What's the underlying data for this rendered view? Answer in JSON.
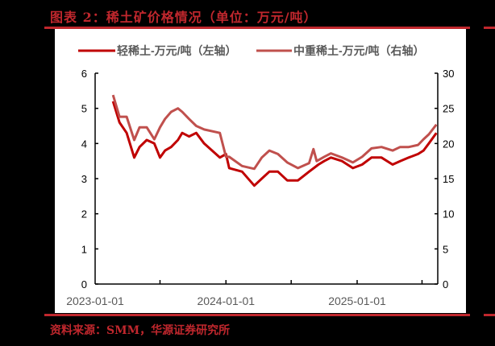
{
  "title": "图表 2：稀土矿价格情况（单位：万元/吨）",
  "source": "资料来源：SMM，华源证券研究所",
  "colors": {
    "light": "#c00000",
    "heavy": "#c0504d",
    "accent": "#c0272d",
    "axis": "#000000",
    "text": "#595959"
  },
  "chart_data": {
    "type": "line",
    "title": "稀土矿价格情况（单位：万元/吨）",
    "xlabel": "",
    "ylabel_left": "轻稀土 (万元/吨)",
    "ylabel_right": "中重稀土 (万元/吨)",
    "xlim": [
      "2023-01-01",
      "2025-10-01"
    ],
    "ylim_left": [
      0,
      6
    ],
    "ylim_right": [
      0,
      30
    ],
    "yticks_left": [
      0,
      1,
      2,
      3,
      4,
      5,
      6
    ],
    "yticks_right": [
      0,
      5,
      10,
      15,
      20,
      25,
      30
    ],
    "xticks": [
      "2023-01-01",
      "2024-01-01",
      "2025-01-01"
    ],
    "legend_position": "top",
    "grid": false,
    "series": [
      {
        "name": "轻稀土-万元/吨（左轴）",
        "axis": "left",
        "x": [
          "2023-02-20",
          "2023-03-10",
          "2023-03-30",
          "2023-04-20",
          "2023-05-05",
          "2023-05-25",
          "2023-06-15",
          "2023-07-01",
          "2023-07-15",
          "2023-08-01",
          "2023-08-20",
          "2023-09-01",
          "2023-09-20",
          "2023-10-10",
          "2023-11-01",
          "2023-12-15",
          "2024-01-01",
          "2024-01-10",
          "2024-02-15",
          "2024-03-20",
          "2024-04-10",
          "2024-05-01",
          "2024-05-25",
          "2024-06-20",
          "2024-07-20",
          "2024-08-20",
          "2024-09-15",
          "2024-10-01",
          "2024-10-20",
          "2024-11-20",
          "2024-12-20",
          "2025-01-15",
          "2025-02-10",
          "2025-03-10",
          "2025-04-10",
          "2025-05-01",
          "2025-05-25",
          "2025-06-20",
          "2025-07-05",
          "2025-07-20",
          "2025-08-10"
        ],
        "values": [
          5.2,
          4.6,
          4.3,
          3.6,
          3.9,
          4.1,
          4.0,
          3.6,
          3.8,
          3.9,
          4.1,
          4.3,
          4.2,
          4.3,
          4.0,
          3.6,
          3.7,
          3.3,
          3.2,
          2.8,
          3.0,
          3.2,
          3.2,
          2.95,
          2.95,
          3.2,
          3.4,
          3.5,
          3.6,
          3.5,
          3.3,
          3.4,
          3.6,
          3.6,
          3.4,
          3.5,
          3.6,
          3.7,
          3.8,
          4.0,
          4.3
        ]
      },
      {
        "name": "中重稀土-万元/吨（右轴）",
        "axis": "right",
        "x": [
          "2023-02-20",
          "2023-03-10",
          "2023-03-30",
          "2023-04-20",
          "2023-05-05",
          "2023-05-25",
          "2023-06-15",
          "2023-07-01",
          "2023-07-15",
          "2023-08-01",
          "2023-08-20",
          "2023-09-01",
          "2023-09-20",
          "2023-10-10",
          "2023-11-01",
          "2023-12-15",
          "2024-01-01",
          "2024-01-10",
          "2024-02-15",
          "2024-03-20",
          "2024-04-10",
          "2024-05-01",
          "2024-05-25",
          "2024-06-20",
          "2024-07-20",
          "2024-08-20",
          "2024-09-01",
          "2024-09-10",
          "2024-10-01",
          "2024-10-20",
          "2024-11-20",
          "2024-12-20",
          "2025-01-15",
          "2025-02-10",
          "2025-03-10",
          "2025-04-10",
          "2025-05-01",
          "2025-05-25",
          "2025-06-20",
          "2025-07-05",
          "2025-07-20",
          "2025-08-10"
        ],
        "values": [
          26.9,
          23.8,
          23.8,
          20.5,
          22.3,
          22.3,
          20.6,
          22.3,
          23.5,
          24.5,
          25.0,
          24.5,
          23.5,
          22.5,
          22.0,
          21.5,
          18.1,
          18.1,
          16.8,
          16.4,
          18.0,
          19.0,
          18.5,
          17.3,
          16.5,
          17.2,
          19.2,
          17.5,
          18.1,
          18.6,
          18.0,
          17.3,
          18.1,
          19.3,
          19.5,
          19.0,
          19.5,
          19.5,
          19.8,
          20.6,
          21.3,
          22.7
        ]
      }
    ]
  },
  "legend": [
    {
      "label": "轻稀土-万元/吨（左轴）"
    },
    {
      "label": "中重稀土-万元/吨（右轴）"
    }
  ]
}
